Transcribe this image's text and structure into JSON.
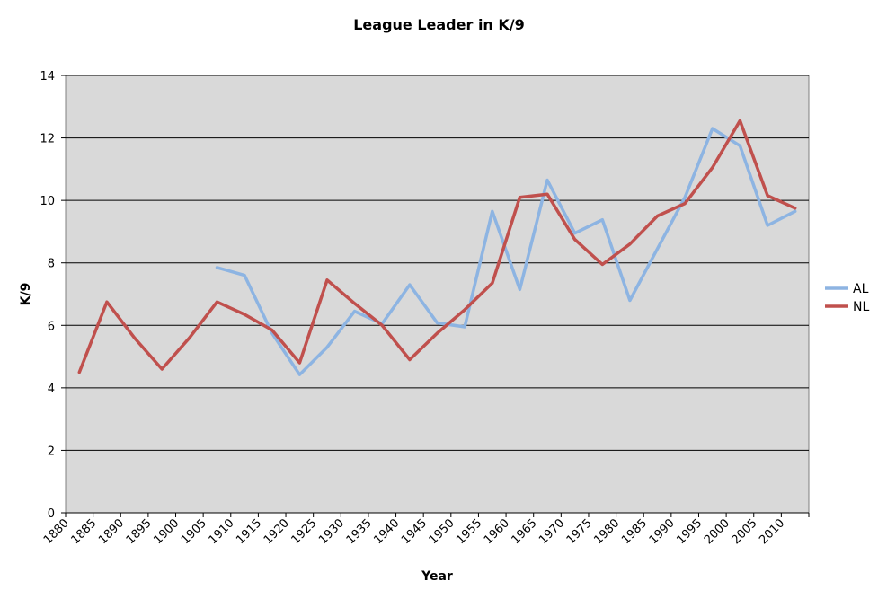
{
  "chart_data": {
    "type": "line",
    "title": "League Leader in K/9",
    "xlabel": "Year",
    "ylabel": "K/9",
    "ylim": [
      0,
      14
    ],
    "yticks": [
      0,
      2,
      4,
      6,
      8,
      10,
      12,
      14
    ],
    "xlim": [
      1880,
      2015
    ],
    "xticks": [
      1880,
      1885,
      1890,
      1895,
      1900,
      1905,
      1910,
      1915,
      1920,
      1925,
      1930,
      1935,
      1940,
      1945,
      1950,
      1955,
      1960,
      1965,
      1970,
      1975,
      1980,
      1985,
      1990,
      1995,
      2000,
      2005,
      2010
    ],
    "x": [
      1882.5,
      1887.5,
      1892.5,
      1897.5,
      1902.5,
      1907.5,
      1912.5,
      1917.5,
      1922.5,
      1927.5,
      1932.5,
      1937.5,
      1942.5,
      1947.5,
      1952.5,
      1957.5,
      1962.5,
      1967.5,
      1972.5,
      1977.5,
      1982.5,
      1987.5,
      1992.5,
      1997.5,
      2002.5,
      2007.5,
      2012.5
    ],
    "series": [
      {
        "name": "AL",
        "color": "#8db4e2",
        "values": [
          null,
          null,
          null,
          null,
          null,
          7.85,
          7.6,
          5.75,
          4.42,
          5.3,
          6.45,
          6.05,
          7.3,
          6.08,
          5.95,
          9.65,
          7.15,
          10.65,
          8.95,
          9.38,
          6.8,
          8.45,
          10.1,
          12.3,
          11.75,
          9.2,
          9.65
        ]
      },
      {
        "name": "NL",
        "color": "#c0504d",
        "values": [
          4.5,
          6.75,
          5.6,
          4.6,
          5.6,
          6.75,
          6.35,
          5.85,
          4.8,
          7.45,
          6.7,
          6.0,
          4.9,
          5.75,
          6.5,
          7.35,
          10.1,
          10.2,
          8.75,
          7.95,
          8.6,
          9.5,
          9.9,
          11.05,
          12.55,
          10.15,
          9.75
        ]
      }
    ],
    "grid": true,
    "legend": "right",
    "background": "#d9d9d9"
  }
}
